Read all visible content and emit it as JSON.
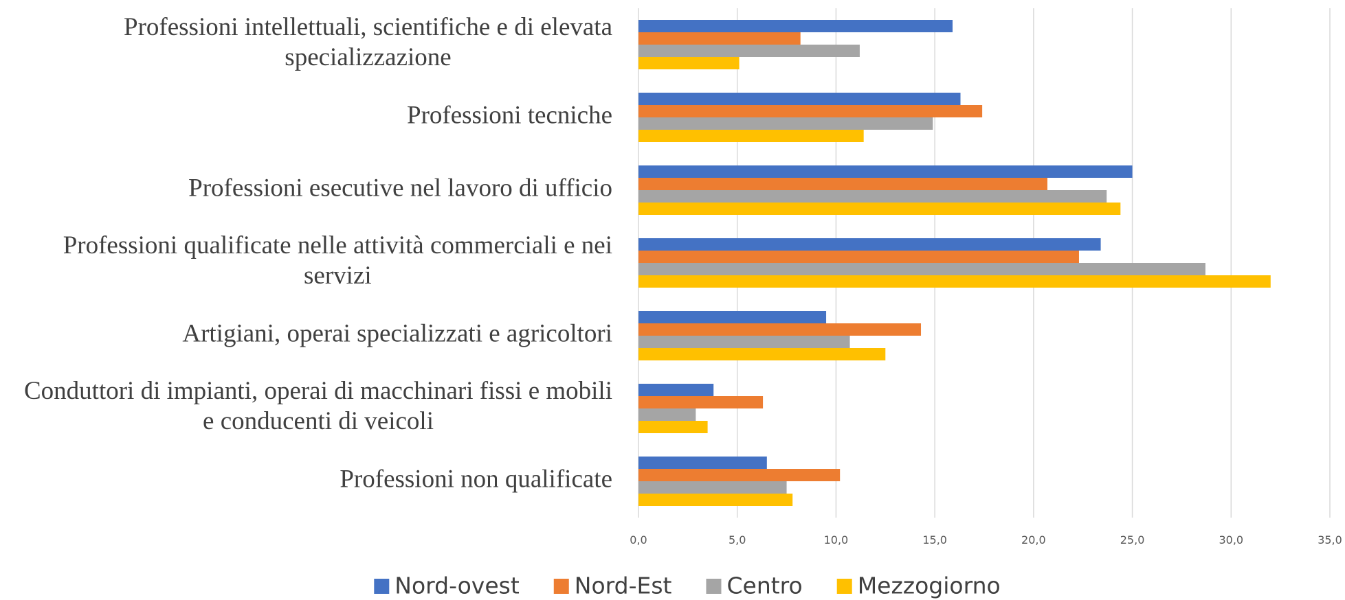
{
  "chart_data": {
    "type": "hbar",
    "categories": [
      "Professioni intellettuali, scientifiche e di elevata specializzazione",
      "Professioni tecniche",
      "Professioni esecutive nel lavoro di ufficio",
      "Professioni qualificate nelle attività commerciali e nei servizi",
      "Artigiani, operai specializzati e agricoltori",
      "Conduttori di impianti, operai di macchinari fissi e mobili e conducenti di veicoli",
      "Professioni non qualificate"
    ],
    "series": [
      {
        "name": "Nord-ovest",
        "color": "#4472c4",
        "values": [
          15.9,
          16.3,
          25.0,
          23.4,
          9.5,
          3.8,
          6.5
        ]
      },
      {
        "name": "Nord-Est",
        "color": "#ed7d31",
        "values": [
          8.2,
          17.4,
          20.7,
          22.3,
          14.3,
          6.3,
          10.2
        ]
      },
      {
        "name": "Centro",
        "color": "#a5a5a5",
        "values": [
          11.2,
          14.9,
          23.7,
          28.7,
          10.7,
          2.9,
          7.5
        ]
      },
      {
        "name": "Mezzogiorno",
        "color": "#ffc000",
        "values": [
          5.1,
          11.4,
          24.4,
          32.0,
          12.5,
          3.5,
          7.8
        ]
      }
    ],
    "xlim": [
      0,
      35
    ],
    "xticks": [
      {
        "value": 0,
        "label": "0,0"
      },
      {
        "value": 5,
        "label": "5,0"
      },
      {
        "value": 10,
        "label": "10,0"
      },
      {
        "value": 15,
        "label": "15,0"
      },
      {
        "value": 20,
        "label": "20,0"
      },
      {
        "value": 25,
        "label": "25,0"
      },
      {
        "value": 30,
        "label": "30,0"
      },
      {
        "value": 35,
        "label": "35,0"
      }
    ],
    "grid": true,
    "legend": "bottom"
  }
}
